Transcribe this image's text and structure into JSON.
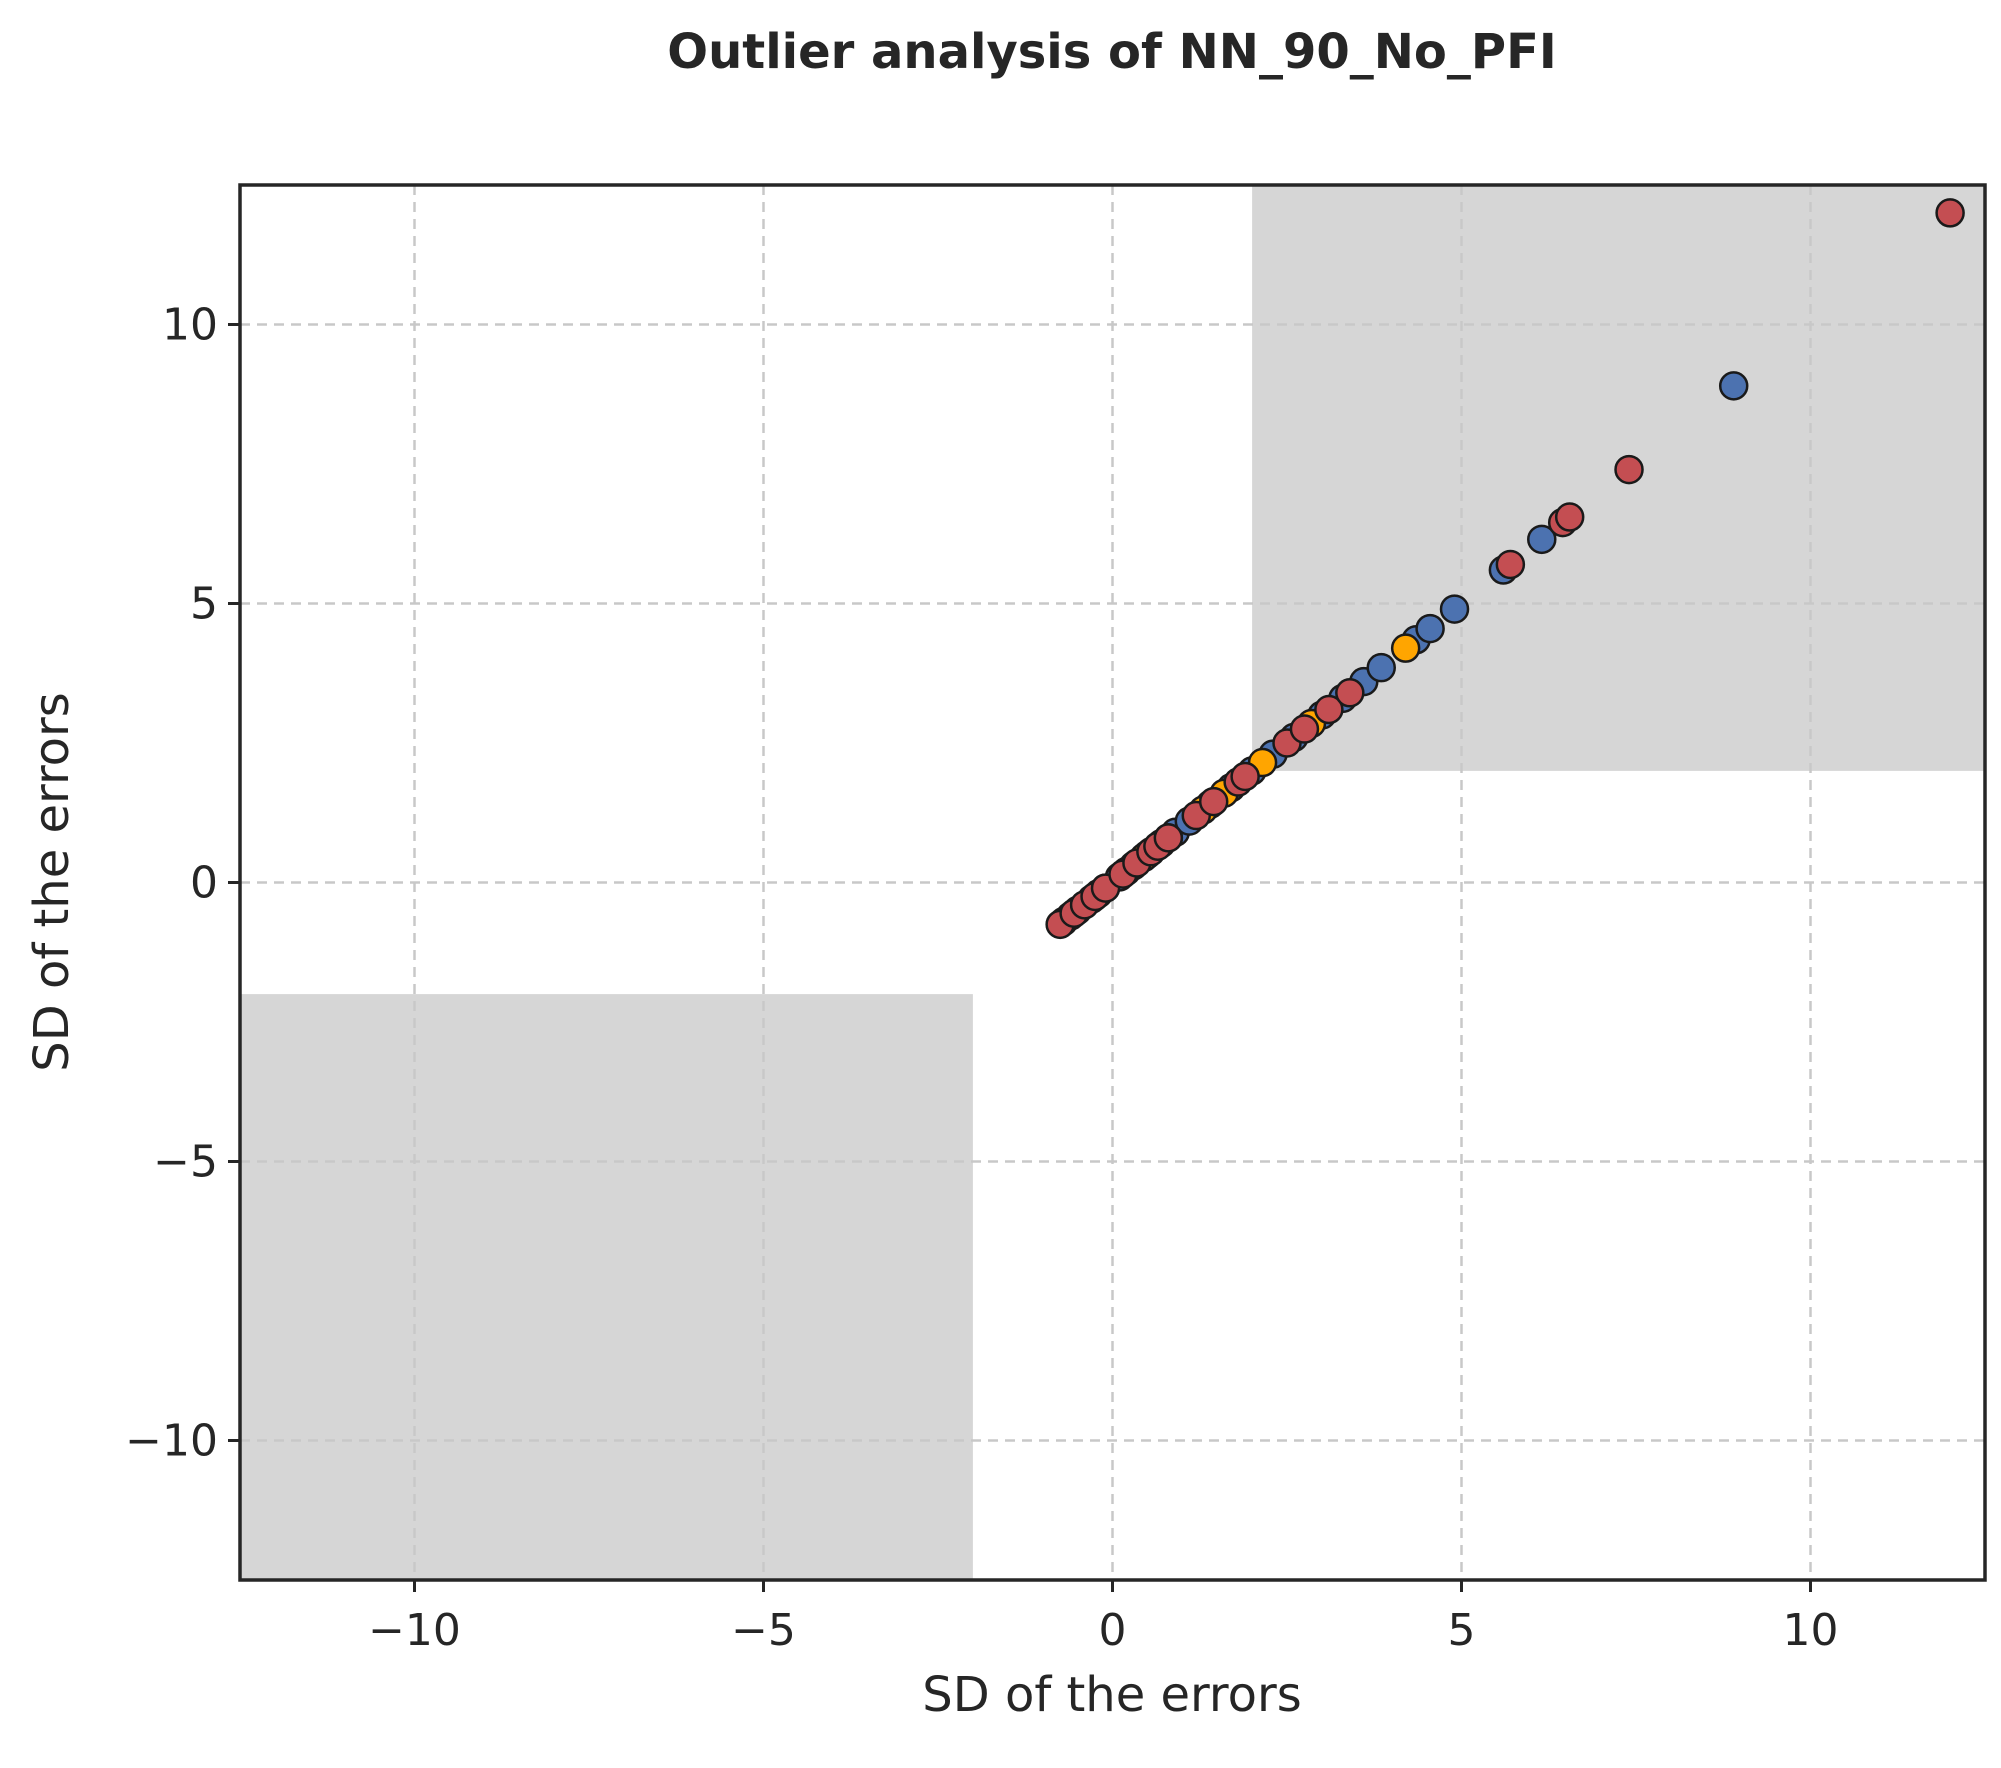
{
  "chart_data": {
    "type": "scatter",
    "title": "Outlier analysis of NN_90_No_PFI",
    "xlabel": "SD of the errors",
    "ylabel": "SD of the errors",
    "xlim": [
      -12.5,
      12.5
    ],
    "ylim": [
      -12.5,
      12.5
    ],
    "x_ticks": [
      -10,
      -5,
      0,
      5,
      10
    ],
    "y_ticks": [
      -10,
      -5,
      0,
      5,
      10
    ],
    "x_tick_labels": [
      "−10",
      "−5",
      "0",
      "5",
      "10"
    ],
    "y_tick_labels": [
      "−10",
      "−5",
      "0",
      "5",
      "10"
    ],
    "grid": true,
    "shaded_regions": [
      {
        "x": [
          2,
          12.5
        ],
        "y": [
          2,
          12.5
        ],
        "color": "#d6d6d6"
      },
      {
        "x": [
          -12.5,
          -2
        ],
        "y": [
          -12.5,
          -2
        ],
        "color": "#d6d6d6"
      }
    ],
    "series": [
      {
        "color": "#4c72b0",
        "points": [
          [
            -0.7,
            -0.7
          ],
          [
            -0.5,
            -0.5
          ],
          [
            -0.3,
            -0.3
          ],
          [
            -0.1,
            -0.1
          ],
          [
            0.1,
            0.1
          ],
          [
            0.3,
            0.3
          ],
          [
            0.5,
            0.5
          ],
          [
            0.7,
            0.7
          ],
          [
            0.9,
            0.9
          ],
          [
            1.1,
            1.1
          ],
          [
            1.4,
            1.4
          ],
          [
            1.7,
            1.7
          ],
          [
            2.0,
            2.0
          ],
          [
            2.3,
            2.3
          ],
          [
            2.6,
            2.6
          ],
          [
            3.0,
            3.0
          ],
          [
            3.3,
            3.3
          ],
          [
            3.6,
            3.6
          ],
          [
            3.85,
            3.85
          ],
          [
            4.35,
            4.35
          ],
          [
            4.55,
            4.55
          ],
          [
            4.9,
            4.9
          ],
          [
            5.6,
            5.6
          ],
          [
            6.15,
            6.15
          ],
          [
            8.9,
            8.9
          ]
        ]
      },
      {
        "color": "#ffa500",
        "points": [
          [
            -0.6,
            -0.6
          ],
          [
            -0.2,
            -0.2
          ],
          [
            0.2,
            0.2
          ],
          [
            0.45,
            0.45
          ],
          [
            0.8,
            0.8
          ],
          [
            1.3,
            1.3
          ],
          [
            1.6,
            1.6
          ],
          [
            2.15,
            2.15
          ],
          [
            2.85,
            2.85
          ],
          [
            4.2,
            4.2
          ]
        ]
      },
      {
        "color": "#c44e52",
        "points": [
          [
            -0.75,
            -0.75
          ],
          [
            -0.55,
            -0.55
          ],
          [
            -0.4,
            -0.4
          ],
          [
            -0.25,
            -0.25
          ],
          [
            -0.1,
            -0.1
          ],
          [
            0.15,
            0.15
          ],
          [
            0.35,
            0.35
          ],
          [
            0.55,
            0.55
          ],
          [
            0.65,
            0.65
          ],
          [
            0.8,
            0.8
          ],
          [
            1.2,
            1.2
          ],
          [
            1.45,
            1.45
          ],
          [
            1.8,
            1.8
          ],
          [
            1.9,
            1.9
          ],
          [
            2.5,
            2.5
          ],
          [
            2.75,
            2.75
          ],
          [
            3.1,
            3.1
          ],
          [
            3.4,
            3.4
          ],
          [
            5.7,
            5.7
          ],
          [
            6.45,
            6.45
          ],
          [
            6.55,
            6.55
          ],
          [
            7.4,
            7.4
          ],
          [
            12.0,
            12.0
          ]
        ]
      }
    ]
  }
}
